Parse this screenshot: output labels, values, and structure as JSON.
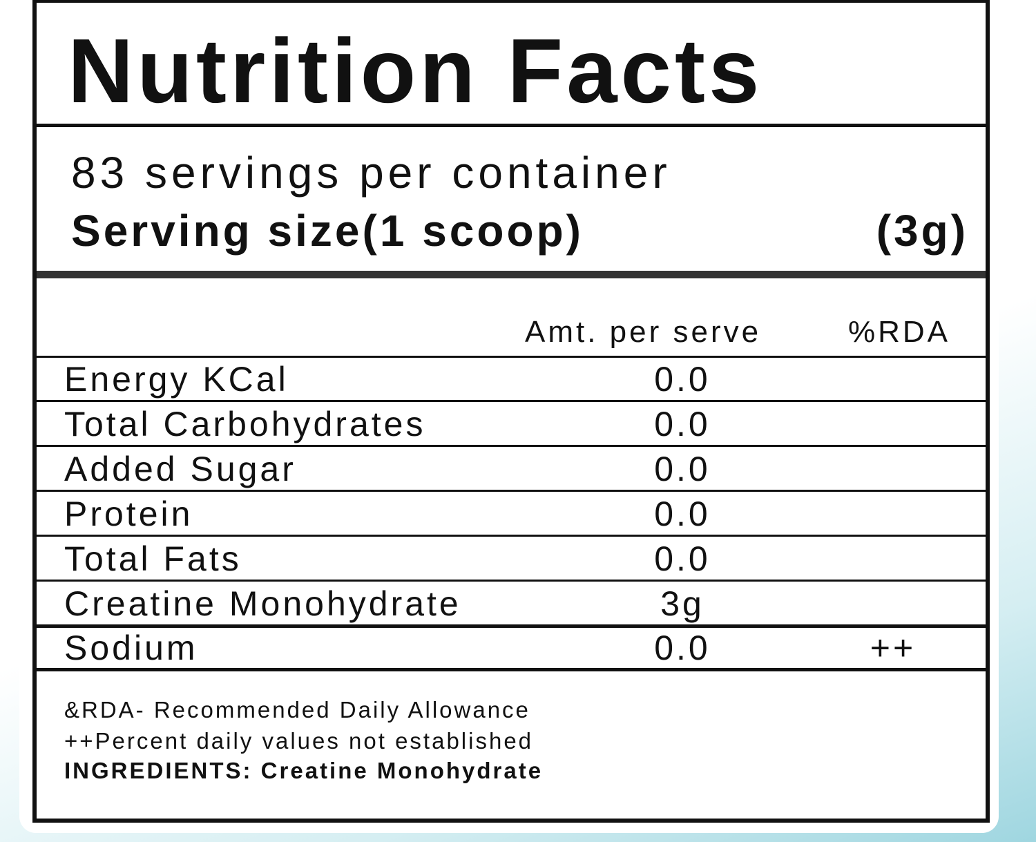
{
  "label": {
    "title": "Nutrition Facts",
    "servings": "83 servings per container",
    "serving_size": {
      "label": "Serving size(1 scoop)",
      "value": "(3g)"
    },
    "table": {
      "columns": [
        "Amt. per serve",
        "%RDA"
      ],
      "rows": [
        {
          "name": "Energy KCal",
          "amount": "0.0"
        },
        {
          "name": "Total Carbohydrates",
          "amount": "0.0"
        },
        {
          "name": "Added Sugar",
          "amount": "0.0"
        },
        {
          "name": "Protein",
          "amount": "0.0"
        },
        {
          "name": "Total Fats",
          "amount": "0.0"
        },
        {
          "name": "Creatine Monohydrate",
          "amount": "3g"
        },
        {
          "name": "Sodium",
          "amount": "0.0",
          "rda": "++"
        }
      ]
    },
    "notes": [
      "&RDA- Recommended Daily Allowance",
      "++Percent daily values not established"
    ],
    "ingredients": "INGREDIENTS: Creatine Monohydrate"
  }
}
